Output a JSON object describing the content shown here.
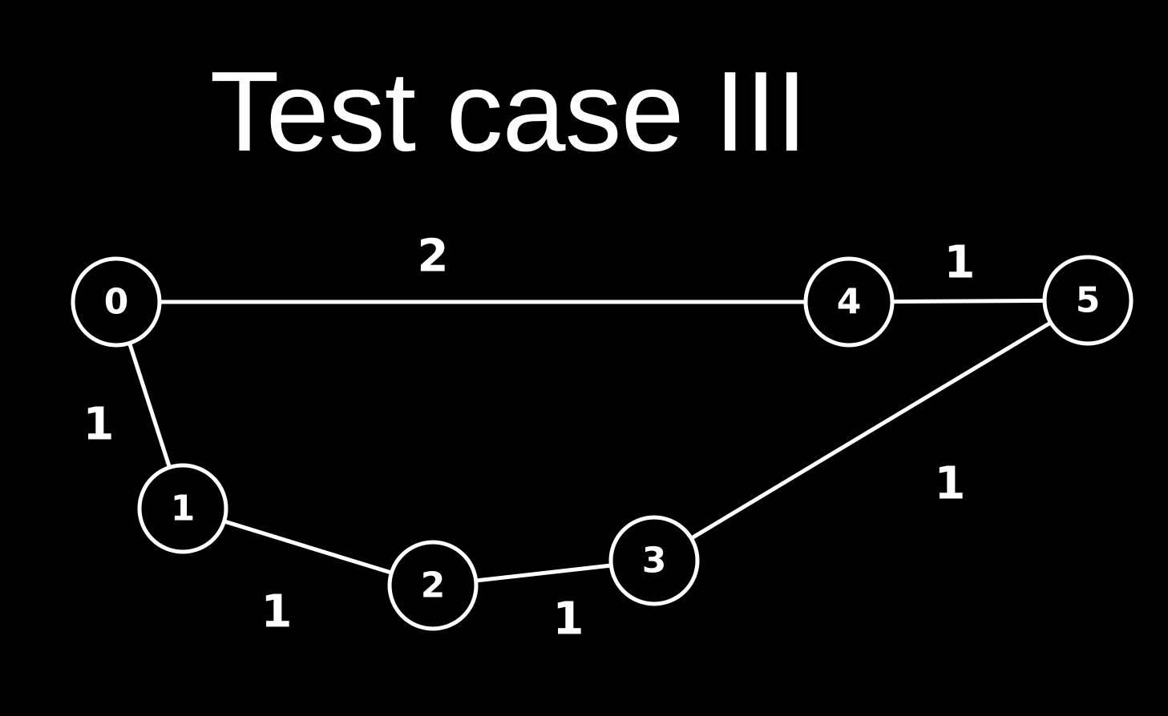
{
  "title": "Test case III",
  "colors": {
    "background": "#000000",
    "foreground": "#ffffff"
  },
  "graph": {
    "nodes": [
      {
        "id": "0",
        "label": "0"
      },
      {
        "id": "1",
        "label": "1"
      },
      {
        "id": "2",
        "label": "2"
      },
      {
        "id": "3",
        "label": "3"
      },
      {
        "id": "4",
        "label": "4"
      },
      {
        "id": "5",
        "label": "5"
      }
    ],
    "edges": [
      {
        "from": "0",
        "to": "4",
        "weight": "2"
      },
      {
        "from": "4",
        "to": "5",
        "weight": "1"
      },
      {
        "from": "0",
        "to": "1",
        "weight": "1"
      },
      {
        "from": "1",
        "to": "2",
        "weight": "1"
      },
      {
        "from": "2",
        "to": "3",
        "weight": "1"
      },
      {
        "from": "3",
        "to": "5",
        "weight": "1"
      }
    ]
  }
}
